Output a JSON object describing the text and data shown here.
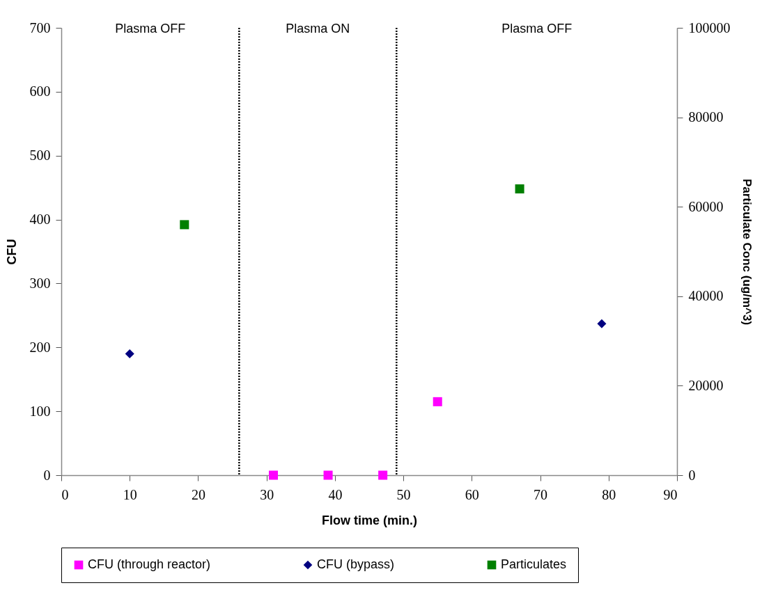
{
  "chart_data": {
    "type": "scatter",
    "xlabel": "Flow time (min.)",
    "ylabel": "CFU",
    "y2label": "Particulate Conc (ug/m^3)",
    "xlim": [
      0,
      90
    ],
    "xticks": [
      0,
      10,
      20,
      30,
      40,
      50,
      60,
      70,
      80,
      90
    ],
    "ylim": [
      0,
      700
    ],
    "yticks": [
      0,
      100,
      200,
      300,
      400,
      500,
      600,
      700
    ],
    "y2lim": [
      0,
      100000
    ],
    "y2ticks": [
      0,
      20000,
      40000,
      60000,
      80000,
      100000
    ],
    "grid": false,
    "legend": "bottom",
    "series": [
      {
        "name": "CFU (through reactor)",
        "color": "#ff00ff",
        "marker": "square",
        "x": [
          31,
          39,
          47,
          55
        ],
        "values": [
          0,
          0,
          0,
          115
        ]
      },
      {
        "name": "CFU (bypass)",
        "color": "#000080",
        "marker": "diamond",
        "x": [
          10,
          79
        ],
        "values": [
          190,
          237
        ]
      },
      {
        "name": "Particulates",
        "color": "#008000",
        "marker": "square",
        "axis": "y2",
        "x": [
          18,
          67
        ],
        "values": [
          56000,
          64000
        ]
      }
    ],
    "ref_lines": [
      {
        "axis": "x",
        "value": 26,
        "line_style": "dotted",
        "color": "#000000"
      },
      {
        "axis": "x",
        "value": 49,
        "line_style": "dotted",
        "color": "#000000"
      }
    ],
    "annotations": [
      "Plasma OFF",
      "Plasma ON",
      "Plasma OFF"
    ]
  }
}
